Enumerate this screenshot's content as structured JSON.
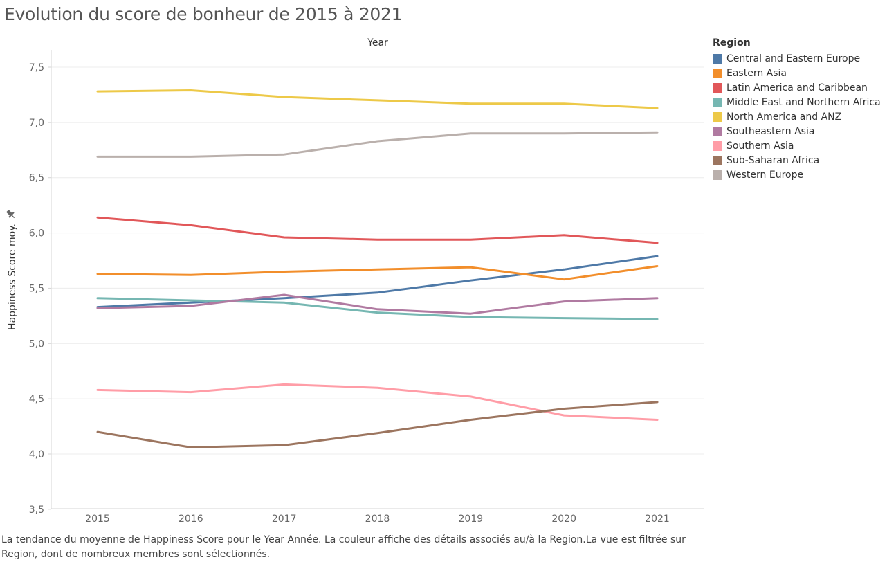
{
  "title": "Evolution du score de bonheur de 2015 à 2021",
  "caption": "La tendance du moyenne de Happiness Score pour le Year Année. La couleur affiche des détails associés au/à la Region.La vue est filtrée sur Region, dont de nombreux membres sont sélectionnés.",
  "chart_data": {
    "type": "line",
    "title": "Evolution du score de bonheur de 2015 à 2021",
    "xlabel": "Year",
    "ylabel": "Happiness Score moy.",
    "x": [
      "2015",
      "2016",
      "2017",
      "2018",
      "2019",
      "2020",
      "2021"
    ],
    "ylim": [
      3.5,
      7.5
    ],
    "yticks": [
      "3,5",
      "4,0",
      "4,5",
      "5,0",
      "5,5",
      "6,0",
      "6,5",
      "7,0",
      "7,5"
    ],
    "grid": true,
    "legend_title": "Region",
    "legend_position": "right",
    "series": [
      {
        "name": "Central and Eastern Europe",
        "color": "#4e79a7",
        "values": [
          5.33,
          5.37,
          5.41,
          5.46,
          5.57,
          5.67,
          5.79
        ]
      },
      {
        "name": "Eastern Asia",
        "color": "#f28e2b",
        "values": [
          5.63,
          5.62,
          5.65,
          5.67,
          5.69,
          5.58,
          5.7
        ]
      },
      {
        "name": "Latin America and Caribbean",
        "color": "#e15759",
        "values": [
          6.14,
          6.07,
          5.96,
          5.94,
          5.94,
          5.98,
          5.91
        ]
      },
      {
        "name": "Middle East and Northern Africa",
        "color": "#76b7b2",
        "values": [
          5.41,
          5.39,
          5.37,
          5.28,
          5.24,
          5.23,
          5.22
        ]
      },
      {
        "name": "North America and ANZ",
        "color": "#edc948",
        "values": [
          7.28,
          7.29,
          7.23,
          7.2,
          7.17,
          7.17,
          7.13
        ]
      },
      {
        "name": "Southeastern Asia",
        "color": "#b07aa1",
        "values": [
          5.32,
          5.34,
          5.44,
          5.31,
          5.27,
          5.38,
          5.41
        ]
      },
      {
        "name": "Southern Asia",
        "color": "#ff9da7",
        "values": [
          4.58,
          4.56,
          4.63,
          4.6,
          4.52,
          4.35,
          4.31
        ]
      },
      {
        "name": "Sub-Saharan Africa",
        "color": "#9c755f",
        "values": [
          4.2,
          4.06,
          4.08,
          4.19,
          4.31,
          4.41,
          4.47
        ]
      },
      {
        "name": "Western Europe",
        "color": "#bab0ac",
        "values": [
          6.69,
          6.69,
          6.71,
          6.83,
          6.9,
          6.9,
          6.91
        ]
      }
    ]
  }
}
